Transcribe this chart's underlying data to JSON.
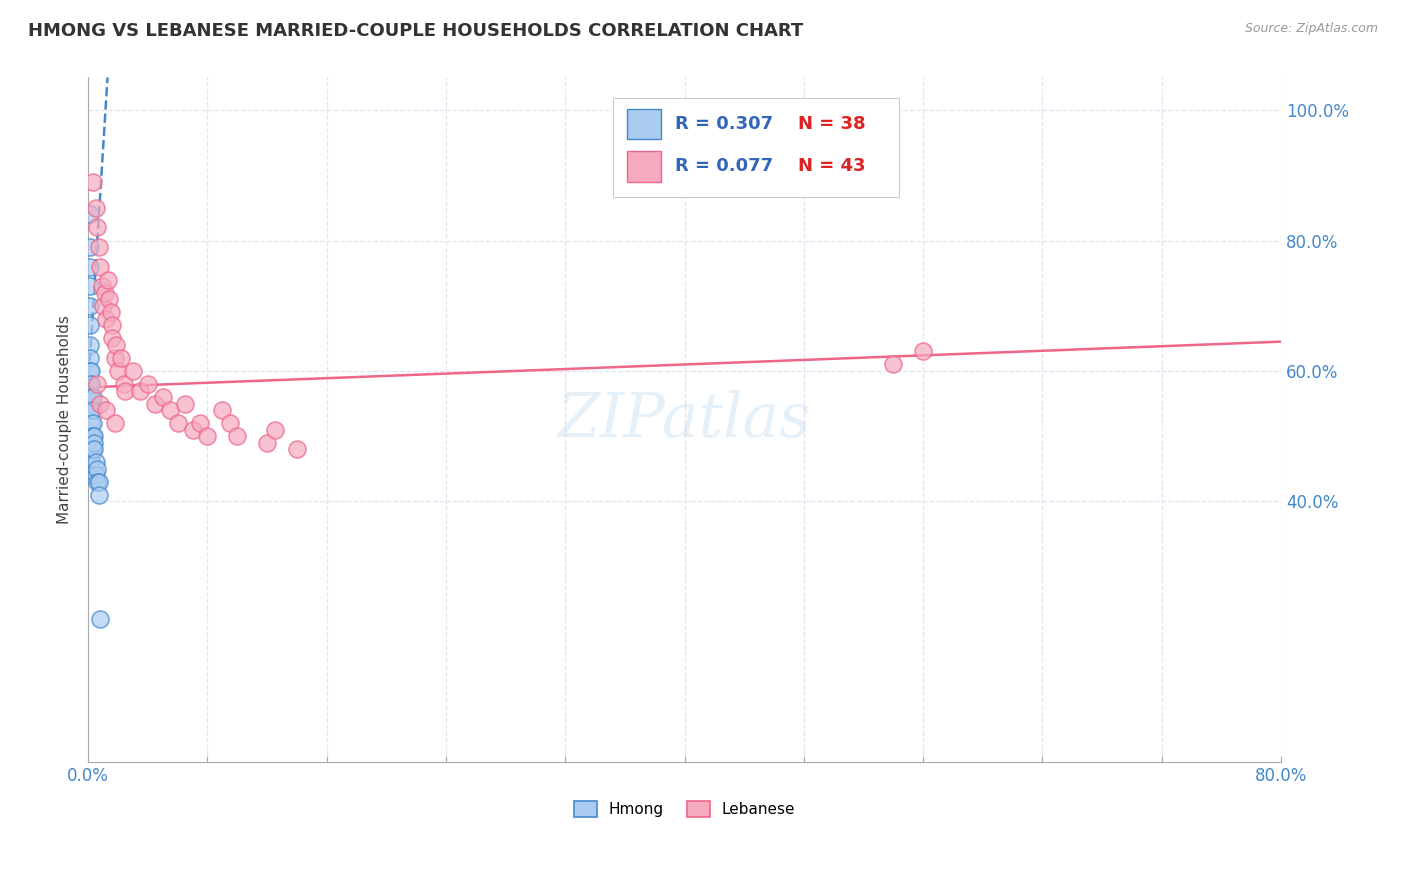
{
  "title": "HMONG VS LEBANESE MARRIED-COUPLE HOUSEHOLDS CORRELATION CHART",
  "source": "Source: ZipAtlas.com",
  "ylabel": "Married-couple Households",
  "xlim": [
    0.0,
    0.8
  ],
  "ylim": [
    0.0,
    1.05
  ],
  "hmong_R": 0.307,
  "hmong_N": 38,
  "lebanese_R": 0.077,
  "lebanese_N": 43,
  "hmong_color": "#aaccf0",
  "lebanese_color": "#f5aac0",
  "hmong_line_color": "#4488cc",
  "lebanese_line_color": "#ee6688",
  "watermark": "ZIPatlas",
  "hmong_x": [
    0.001,
    0.001,
    0.001,
    0.001,
    0.001,
    0.001,
    0.001,
    0.001,
    0.001,
    0.001,
    0.001,
    0.001,
    0.002,
    0.002,
    0.002,
    0.002,
    0.002,
    0.002,
    0.002,
    0.002,
    0.002,
    0.002,
    0.002,
    0.003,
    0.003,
    0.003,
    0.003,
    0.003,
    0.004,
    0.004,
    0.004,
    0.005,
    0.005,
    0.006,
    0.006,
    0.007,
    0.007,
    0.008
  ],
  "hmong_y": [
    0.84,
    0.79,
    0.76,
    0.73,
    0.7,
    0.67,
    0.64,
    0.62,
    0.6,
    0.58,
    0.56,
    0.54,
    0.6,
    0.58,
    0.56,
    0.54,
    0.52,
    0.5,
    0.49,
    0.48,
    0.47,
    0.46,
    0.44,
    0.56,
    0.54,
    0.52,
    0.5,
    0.48,
    0.5,
    0.49,
    0.48,
    0.46,
    0.44,
    0.45,
    0.43,
    0.43,
    0.41,
    0.22
  ],
  "lebanese_x": [
    0.003,
    0.005,
    0.006,
    0.007,
    0.008,
    0.009,
    0.01,
    0.011,
    0.012,
    0.013,
    0.014,
    0.015,
    0.016,
    0.016,
    0.018,
    0.019,
    0.02,
    0.022,
    0.024,
    0.025,
    0.03,
    0.035,
    0.04,
    0.045,
    0.05,
    0.055,
    0.06,
    0.065,
    0.07,
    0.075,
    0.08,
    0.09,
    0.095,
    0.1,
    0.12,
    0.125,
    0.14,
    0.54,
    0.56,
    0.006,
    0.008,
    0.012,
    0.018
  ],
  "lebanese_y": [
    0.89,
    0.85,
    0.82,
    0.79,
    0.76,
    0.73,
    0.7,
    0.72,
    0.68,
    0.74,
    0.71,
    0.69,
    0.67,
    0.65,
    0.62,
    0.64,
    0.6,
    0.62,
    0.58,
    0.57,
    0.6,
    0.57,
    0.58,
    0.55,
    0.56,
    0.54,
    0.52,
    0.55,
    0.51,
    0.52,
    0.5,
    0.54,
    0.52,
    0.5,
    0.49,
    0.51,
    0.48,
    0.61,
    0.63,
    0.58,
    0.55,
    0.54,
    0.52
  ],
  "hmong_trendline_x": [
    0.0,
    0.013
  ],
  "hmong_trendline_y": [
    0.575,
    1.05
  ],
  "lebanese_trendline_x": [
    0.0,
    0.8
  ],
  "lebanese_trendline_y": [
    0.575,
    0.645
  ]
}
